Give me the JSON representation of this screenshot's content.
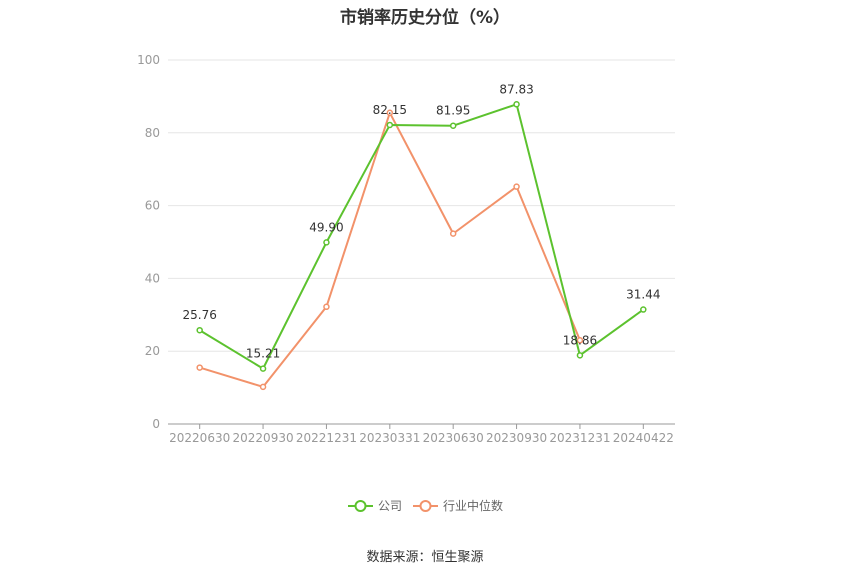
{
  "chart_data": {
    "type": "line",
    "title": "市销率历史分位（%）",
    "categories": [
      "20220630",
      "20220930",
      "20221231",
      "20230331",
      "20230630",
      "20230930",
      "20231231",
      "20240422"
    ],
    "series": [
      {
        "name": "公司",
        "color": "#5cc22e",
        "values": [
          25.76,
          15.21,
          49.9,
          82.15,
          81.95,
          87.83,
          18.86,
          31.44
        ],
        "labels": [
          "25.76",
          "15.21",
          "49.90",
          "82.15",
          "81.95",
          "87.83",
          "18.86",
          "31.44"
        ]
      },
      {
        "name": "行业中位数",
        "color": "#f2926a",
        "values": [
          15.5,
          10.2,
          32.2,
          85.5,
          52.3,
          65.2,
          23.0,
          null
        ]
      }
    ],
    "ylim": [
      0,
      100
    ],
    "yticks": [
      "0",
      "20",
      "40",
      "60",
      "80",
      "100"
    ],
    "grid": true,
    "legend_position": "bottom"
  },
  "footer": {
    "source": "数据来源：恒生聚源"
  }
}
